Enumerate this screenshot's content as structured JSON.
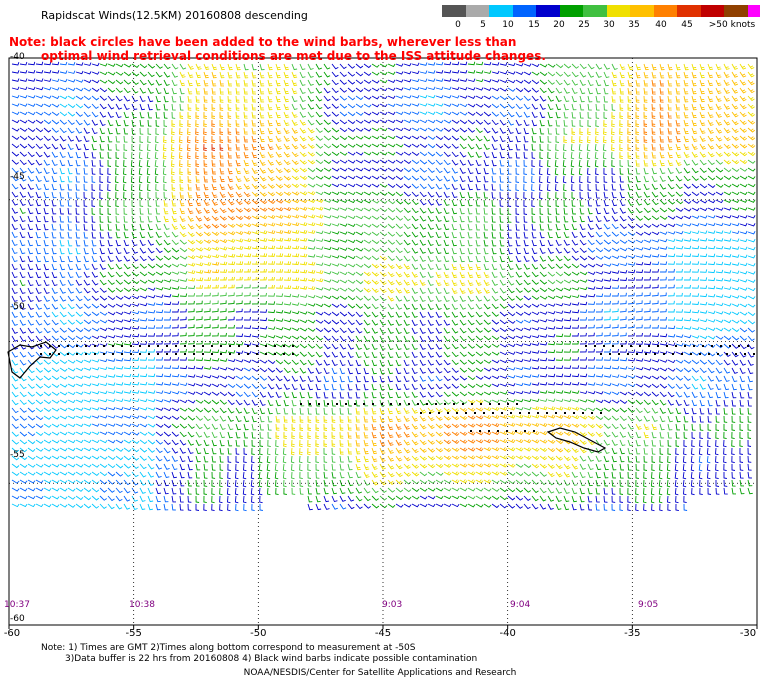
{
  "title": "Rapidscat Winds(12.5KM) 20160808 descending",
  "note_line1": "Note: black circles have been added to the wind barbs, wherever less than",
  "note_line2": "optimal wind retrieval conditions are met due to the ISS attitude changes.",
  "colorbar": {
    "labels": [
      "0",
      "5",
      "10",
      "15",
      "20",
      "25",
      "30",
      "35",
      "40",
      "45",
      ">50 knots"
    ],
    "colors": [
      "#555555",
      "#aaaaaa",
      "#00c8ff",
      "#0064ff",
      "#0000cd",
      "#00a000",
      "#40c040",
      "#f0e000",
      "#ffc000",
      "#ff8000",
      "#e03000",
      "#c00000",
      "#904000",
      "#ff00ff",
      "#a000c0",
      "#600080"
    ]
  },
  "axes": {
    "lon_ticks": [
      "-60",
      "-55",
      "-50",
      "-45",
      "-40",
      "-35",
      "-30"
    ],
    "lat_ticks": [
      "-40",
      "-45",
      "-50",
      "-55",
      "-60"
    ],
    "lat_top": -40,
    "lat_bottom": -60,
    "lon_left": -60,
    "lon_right": -30
  },
  "times": [
    "10:37",
    "10:38",
    "9:03",
    "9:04",
    "9:05"
  ],
  "footnote_line1": "Note: 1) Times are GMT 2)Times along bottom correspond to measurement at -50S",
  "footnote_line2": "3)Data buffer is 22 hrs from 20160808 4) Black wind barbs indicate possible contamination",
  "credit": "NOAA/NESDIS/Center for Satellite Applications and Research"
}
